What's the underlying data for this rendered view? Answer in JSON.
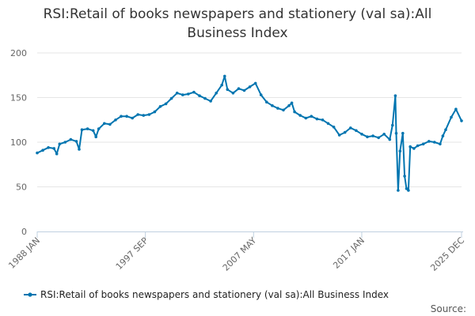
{
  "chart_data": {
    "type": "line",
    "title": "RSI:Retail of books newspapers and stationery (val sa):All Business Index",
    "xlabel": "",
    "ylabel": "",
    "ylim": [
      0,
      200
    ],
    "yticks": [
      0,
      50,
      100,
      150,
      200
    ],
    "xlim": [
      "1988-01",
      "2025-12"
    ],
    "xticks": [
      "1988 JAN",
      "1997 SEP",
      "2007 MAY",
      "2017 JAN",
      "2025 DEC"
    ],
    "grid": "horizontal",
    "legend_position": "bottom",
    "series_color": "#0075b0",
    "series": [
      {
        "name": "RSI:Retail of books newspapers and stationery (val sa):All Business Index",
        "points": [
          [
            "1988-01",
            88
          ],
          [
            "1988-07",
            91
          ],
          [
            "1989-01",
            94
          ],
          [
            "1989-07",
            93
          ],
          [
            "1989-10",
            87
          ],
          [
            "1990-01",
            98
          ],
          [
            "1990-07",
            100
          ],
          [
            "1991-01",
            103
          ],
          [
            "1991-07",
            101
          ],
          [
            "1991-10",
            92
          ],
          [
            "1992-01",
            114
          ],
          [
            "1992-07",
            115
          ],
          [
            "1993-01",
            113
          ],
          [
            "1993-04",
            106
          ],
          [
            "1993-07",
            115
          ],
          [
            "1994-01",
            121
          ],
          [
            "1994-07",
            120
          ],
          [
            "1995-01",
            125
          ],
          [
            "1995-07",
            129
          ],
          [
            "1996-01",
            129
          ],
          [
            "1996-07",
            127
          ],
          [
            "1997-01",
            131
          ],
          [
            "1997-07",
            130
          ],
          [
            "1998-01",
            131
          ],
          [
            "1998-07",
            134
          ],
          [
            "1999-01",
            140
          ],
          [
            "1999-07",
            143
          ],
          [
            "2000-01",
            149
          ],
          [
            "2000-07",
            155
          ],
          [
            "2001-01",
            153
          ],
          [
            "2001-07",
            154
          ],
          [
            "2002-01",
            156
          ],
          [
            "2002-07",
            152
          ],
          [
            "2003-01",
            149
          ],
          [
            "2003-07",
            146
          ],
          [
            "2004-01",
            155
          ],
          [
            "2004-07",
            164
          ],
          [
            "2004-10",
            174
          ],
          [
            "2005-01",
            159
          ],
          [
            "2005-07",
            155
          ],
          [
            "2006-01",
            160
          ],
          [
            "2006-07",
            158
          ],
          [
            "2007-01",
            162
          ],
          [
            "2007-07",
            166
          ],
          [
            "2008-01",
            153
          ],
          [
            "2008-07",
            145
          ],
          [
            "2009-01",
            141
          ],
          [
            "2009-07",
            138
          ],
          [
            "2010-01",
            136
          ],
          [
            "2010-07",
            141
          ],
          [
            "2010-10",
            144
          ],
          [
            "2011-01",
            134
          ],
          [
            "2011-07",
            130
          ],
          [
            "2012-01",
            127
          ],
          [
            "2012-07",
            129
          ],
          [
            "2013-01",
            126
          ],
          [
            "2013-07",
            125
          ],
          [
            "2014-01",
            121
          ],
          [
            "2014-07",
            117
          ],
          [
            "2015-01",
            108
          ],
          [
            "2015-07",
            111
          ],
          [
            "2016-01",
            116
          ],
          [
            "2016-07",
            113
          ],
          [
            "2017-01",
            109
          ],
          [
            "2017-07",
            106
          ],
          [
            "2018-01",
            107
          ],
          [
            "2018-07",
            105
          ],
          [
            "2019-01",
            109
          ],
          [
            "2019-07",
            103
          ],
          [
            "2019-10",
            119
          ],
          [
            "2020-01",
            152
          ],
          [
            "2020-02",
            110
          ],
          [
            "2020-04",
            46
          ],
          [
            "2020-06",
            90
          ],
          [
            "2020-09",
            110
          ],
          [
            "2020-11",
            62
          ],
          [
            "2021-01",
            48
          ],
          [
            "2021-03",
            46
          ],
          [
            "2021-05",
            95
          ],
          [
            "2021-09",
            93
          ],
          [
            "2022-01",
            96
          ],
          [
            "2022-07",
            98
          ],
          [
            "2023-01",
            101
          ],
          [
            "2023-07",
            100
          ],
          [
            "2024-01",
            98
          ],
          [
            "2024-04",
            107
          ],
          [
            "2024-07",
            114
          ],
          [
            "2025-01",
            128
          ],
          [
            "2025-06",
            137
          ],
          [
            "2025-12",
            124
          ]
        ]
      }
    ]
  },
  "legend": {
    "label": "RSI:Retail of books newspapers and stationery (val sa):All Business Index"
  },
  "footer": {
    "source_label": "Source:"
  }
}
